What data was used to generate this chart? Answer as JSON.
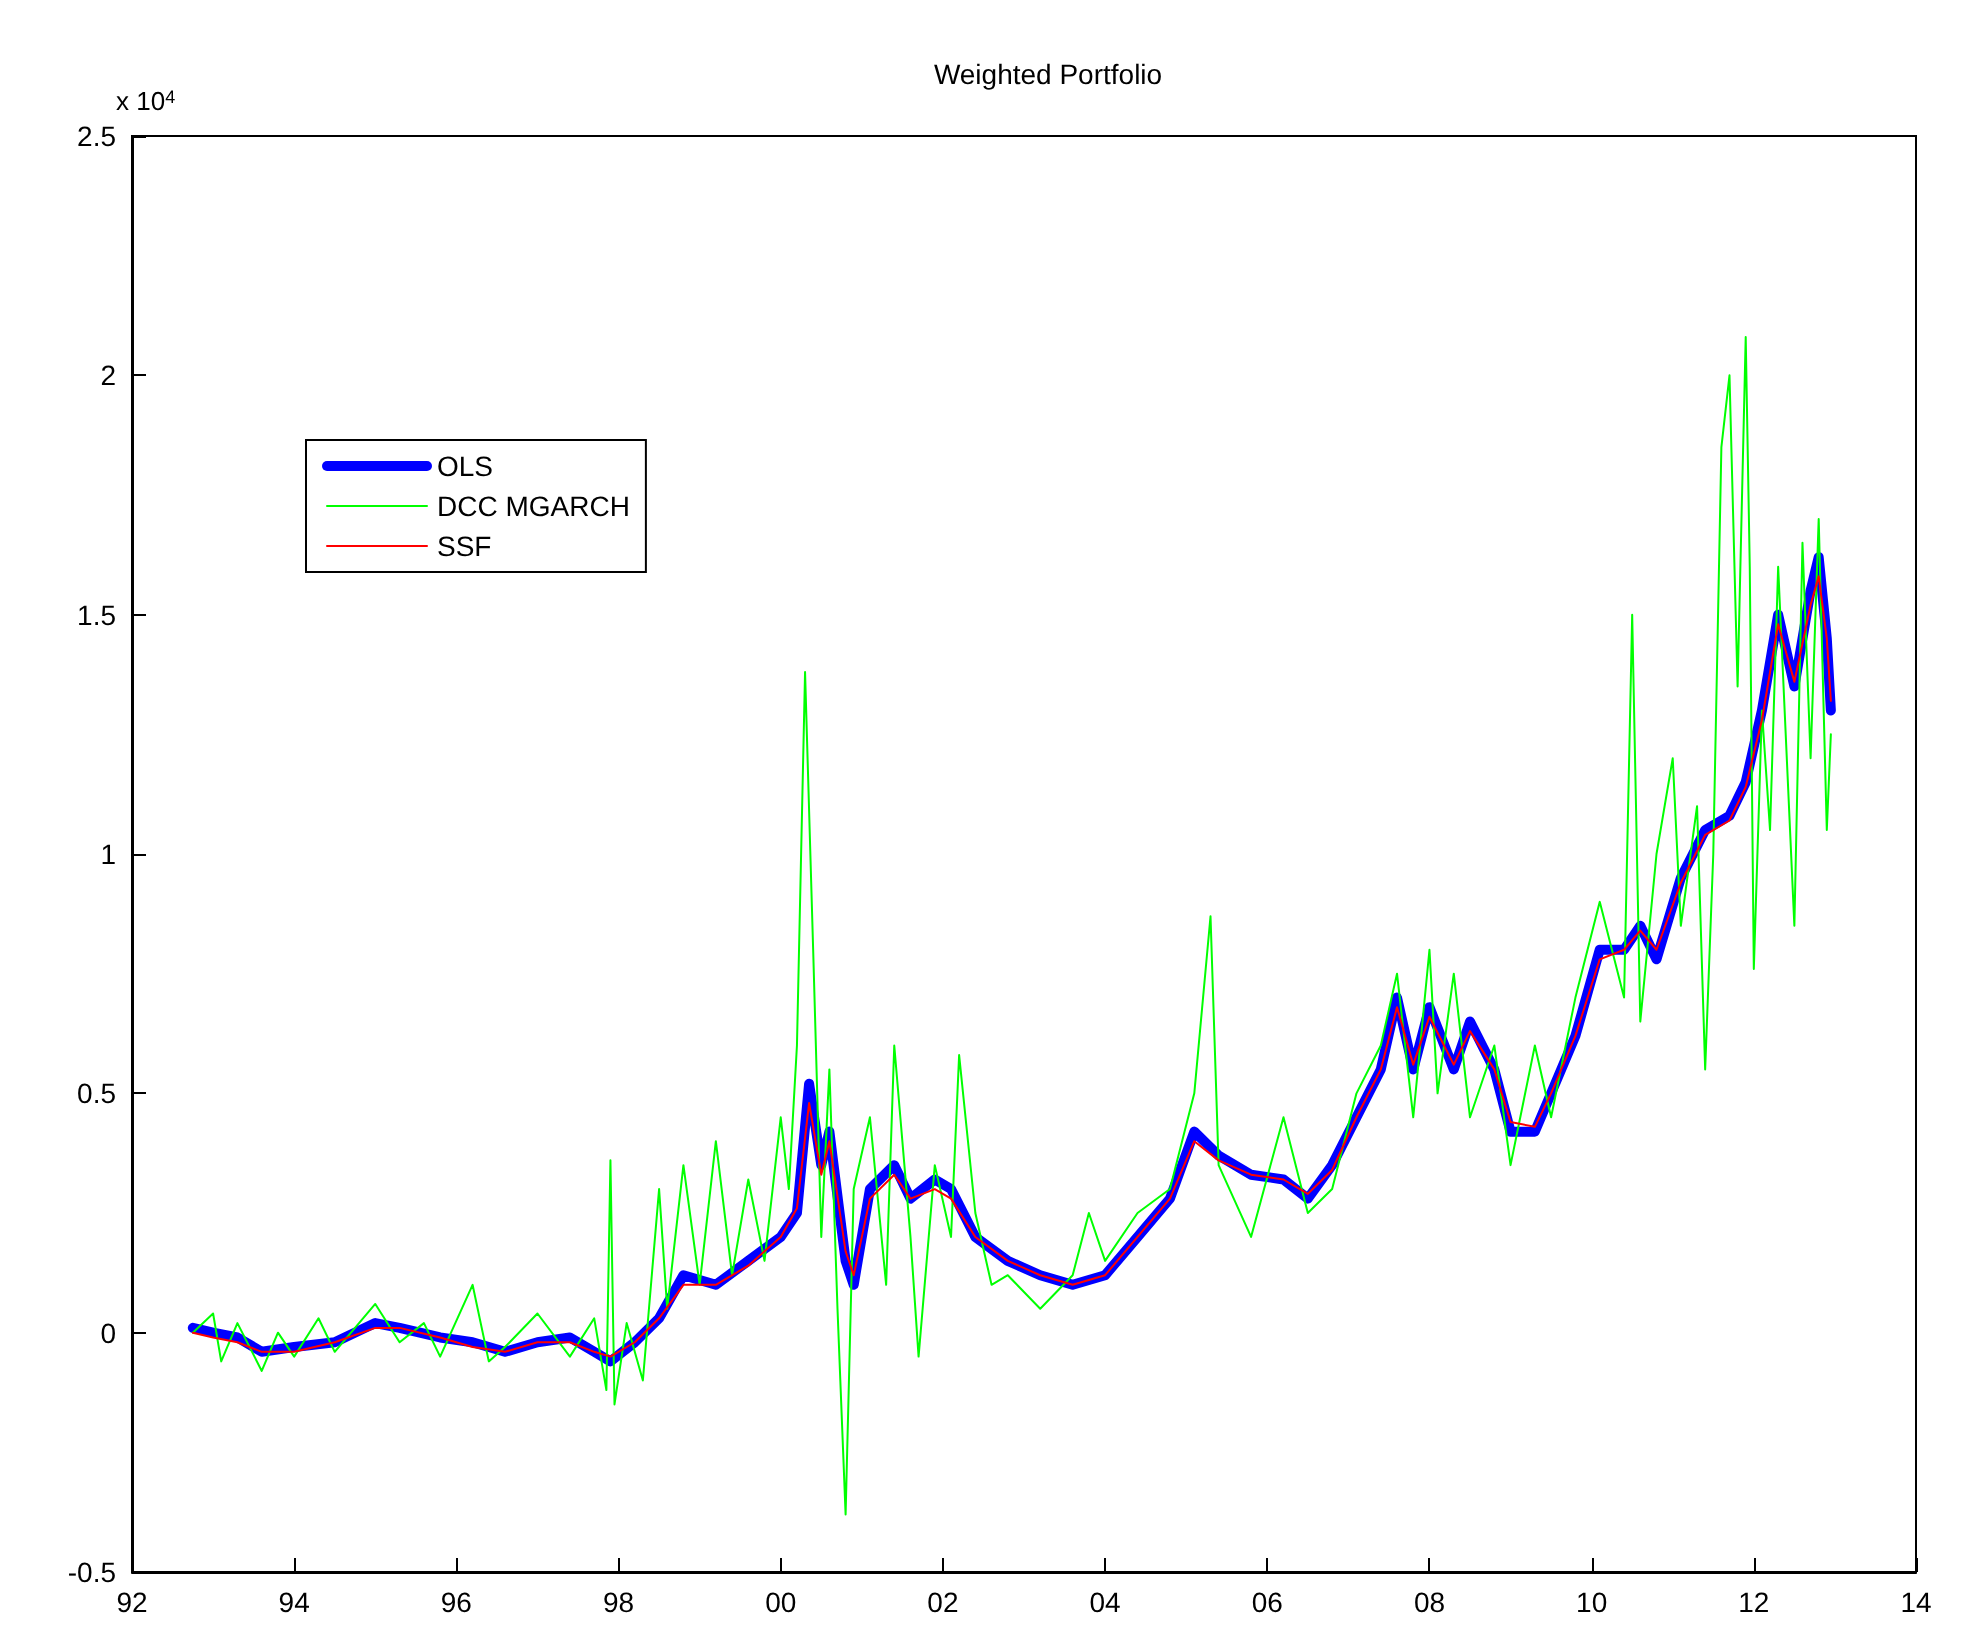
{
  "chart_data": {
    "type": "line",
    "title": "Weighted Portfolio",
    "annotations": [
      "x 10$^{4}$"
    ],
    "xlim": [
      1992,
      2014
    ],
    "xticks": [
      {
        "value": 1992,
        "label": "92"
      },
      {
        "value": 1994,
        "label": "94"
      },
      {
        "value": 1996,
        "label": "96"
      },
      {
        "value": 1998,
        "label": "98"
      },
      {
        "value": 2000,
        "label": "00"
      },
      {
        "value": 2002,
        "label": "02"
      },
      {
        "value": 2004,
        "label": "04"
      },
      {
        "value": 2006,
        "label": "06"
      },
      {
        "value": 2008,
        "label": "08"
      },
      {
        "value": 2010,
        "label": "10"
      },
      {
        "value": 2012,
        "label": "12"
      },
      {
        "value": 2014,
        "label": "14"
      }
    ],
    "ylim": [
      -0.5,
      2.5
    ],
    "yticks": [
      -0.5,
      0,
      0.5,
      1,
      1.5,
      2,
      2.5
    ],
    "grid": false,
    "legend": "top left",
    "marker": "none",
    "line_style": "solid",
    "series": [
      {
        "name": "OLS",
        "color": "#0000ff",
        "x": [
          1992.75,
          1993.0,
          1993.3,
          1993.6,
          1994.0,
          1994.5,
          1995.0,
          1995.3,
          1995.8,
          1996.2,
          1996.6,
          1997.0,
          1997.4,
          1997.7,
          1997.9,
          1998.2,
          1998.5,
          1998.8,
          1999.2,
          1999.6,
          2000.0,
          2000.2,
          2000.35,
          2000.5,
          2000.6,
          2000.8,
          2000.9,
          2001.1,
          2001.4,
          2001.6,
          2001.9,
          2002.1,
          2002.4,
          2002.8,
          2003.2,
          2003.6,
          2004.0,
          2004.4,
          2004.8,
          2005.1,
          2005.4,
          2005.8,
          2006.2,
          2006.5,
          2006.8,
          2007.1,
          2007.4,
          2007.6,
          2007.8,
          2008.0,
          2008.3,
          2008.5,
          2008.8,
          2009.0,
          2009.3,
          2009.5,
          2009.8,
          2010.1,
          2010.4,
          2010.6,
          2010.8,
          2011.1,
          2011.4,
          2011.7,
          2011.9,
          2012.1,
          2012.3,
          2012.5,
          2012.7,
          2012.8,
          2012.9,
          2012.95
        ],
        "values": [
          0.01,
          0.0,
          -0.01,
          -0.04,
          -0.03,
          -0.02,
          0.02,
          0.01,
          -0.01,
          -0.02,
          -0.04,
          -0.02,
          -0.01,
          -0.04,
          -0.06,
          -0.02,
          0.03,
          0.12,
          0.1,
          0.15,
          0.2,
          0.25,
          0.52,
          0.35,
          0.42,
          0.15,
          0.1,
          0.3,
          0.35,
          0.28,
          0.32,
          0.3,
          0.2,
          0.15,
          0.12,
          0.1,
          0.12,
          0.2,
          0.28,
          0.42,
          0.37,
          0.33,
          0.32,
          0.28,
          0.35,
          0.45,
          0.55,
          0.7,
          0.55,
          0.68,
          0.55,
          0.65,
          0.55,
          0.42,
          0.42,
          0.5,
          0.62,
          0.8,
          0.8,
          0.85,
          0.78,
          0.95,
          1.05,
          1.08,
          1.15,
          1.3,
          1.5,
          1.35,
          1.55,
          1.62,
          1.45,
          1.3
        ]
      },
      {
        "name": "DCC MGARCH",
        "color": "#00ff00",
        "x": [
          1992.75,
          1993.0,
          1993.1,
          1993.3,
          1993.6,
          1993.8,
          1994.0,
          1994.3,
          1994.5,
          1995.0,
          1995.3,
          1995.6,
          1995.8,
          1996.2,
          1996.4,
          1996.6,
          1997.0,
          1997.4,
          1997.7,
          1997.85,
          1997.9,
          1997.95,
          1998.1,
          1998.3,
          1998.5,
          1998.6,
          1998.8,
          1999.0,
          1999.2,
          1999.4,
          1999.6,
          1999.8,
          2000.0,
          2000.1,
          2000.2,
          2000.3,
          2000.4,
          2000.5,
          2000.6,
          2000.7,
          2000.8,
          2000.9,
          2001.1,
          2001.3,
          2001.4,
          2001.6,
          2001.7,
          2001.9,
          2002.1,
          2002.2,
          2002.4,
          2002.6,
          2002.8,
          2003.2,
          2003.6,
          2003.8,
          2004.0,
          2004.4,
          2004.8,
          2005.1,
          2005.3,
          2005.4,
          2005.8,
          2006.2,
          2006.5,
          2006.8,
          2007.1,
          2007.4,
          2007.6,
          2007.8,
          2008.0,
          2008.1,
          2008.3,
          2008.5,
          2008.8,
          2009.0,
          2009.3,
          2009.5,
          2009.8,
          2010.1,
          2010.4,
          2010.5,
          2010.6,
          2010.8,
          2011.0,
          2011.1,
          2011.3,
          2011.4,
          2011.5,
          2011.6,
          2011.7,
          2011.8,
          2011.9,
          2011.95,
          2012.0,
          2012.1,
          2012.2,
          2012.3,
          2012.5,
          2012.6,
          2012.7,
          2012.8,
          2012.9,
          2012.95
        ],
        "values": [
          0.0,
          0.04,
          -0.06,
          0.02,
          -0.08,
          0.0,
          -0.05,
          0.03,
          -0.04,
          0.06,
          -0.02,
          0.02,
          -0.05,
          0.1,
          -0.06,
          -0.03,
          0.04,
          -0.05,
          0.03,
          -0.12,
          0.36,
          -0.15,
          0.02,
          -0.1,
          0.3,
          0.05,
          0.35,
          0.1,
          0.4,
          0.12,
          0.32,
          0.15,
          0.45,
          0.3,
          0.6,
          1.38,
          0.8,
          0.2,
          0.55,
          0.05,
          -0.38,
          0.3,
          0.45,
          0.1,
          0.6,
          0.2,
          -0.05,
          0.35,
          0.2,
          0.58,
          0.25,
          0.1,
          0.12,
          0.05,
          0.12,
          0.25,
          0.15,
          0.25,
          0.3,
          0.5,
          0.87,
          0.35,
          0.2,
          0.45,
          0.25,
          0.3,
          0.5,
          0.6,
          0.75,
          0.45,
          0.8,
          0.5,
          0.75,
          0.45,
          0.6,
          0.35,
          0.6,
          0.45,
          0.7,
          0.9,
          0.7,
          1.5,
          0.65,
          1.0,
          1.2,
          0.85,
          1.1,
          0.55,
          1.0,
          1.85,
          2.0,
          1.35,
          2.08,
          1.6,
          0.76,
          1.3,
          1.05,
          1.6,
          0.85,
          1.65,
          1.2,
          1.7,
          1.05,
          1.25
        ]
      },
      {
        "name": "SSF",
        "color": "#ff0000",
        "x": [
          1992.75,
          1993.0,
          1993.3,
          1993.6,
          1994.0,
          1994.5,
          1995.0,
          1995.3,
          1995.8,
          1996.2,
          1996.6,
          1997.0,
          1997.4,
          1997.7,
          1997.9,
          1998.2,
          1998.5,
          1998.8,
          1999.2,
          1999.6,
          2000.0,
          2000.2,
          2000.35,
          2000.5,
          2000.6,
          2000.8,
          2000.9,
          2001.1,
          2001.4,
          2001.6,
          2001.9,
          2002.1,
          2002.4,
          2002.8,
          2003.2,
          2003.6,
          2004.0,
          2004.4,
          2004.8,
          2005.1,
          2005.4,
          2005.8,
          2006.2,
          2006.5,
          2006.8,
          2007.1,
          2007.4,
          2007.6,
          2007.8,
          2008.0,
          2008.3,
          2008.5,
          2008.8,
          2009.0,
          2009.3,
          2009.5,
          2009.8,
          2010.1,
          2010.4,
          2010.6,
          2010.8,
          2011.1,
          2011.4,
          2011.7,
          2011.9,
          2012.1,
          2012.3,
          2012.5,
          2012.7,
          2012.8,
          2012.9,
          2012.95
        ],
        "values": [
          0.0,
          -0.01,
          -0.02,
          -0.04,
          -0.04,
          -0.02,
          0.01,
          0.01,
          -0.01,
          -0.03,
          -0.04,
          -0.02,
          -0.02,
          -0.04,
          -0.05,
          -0.02,
          0.03,
          0.1,
          0.1,
          0.14,
          0.2,
          0.26,
          0.48,
          0.33,
          0.4,
          0.17,
          0.12,
          0.28,
          0.33,
          0.28,
          0.3,
          0.28,
          0.2,
          0.15,
          0.12,
          0.1,
          0.12,
          0.2,
          0.28,
          0.4,
          0.36,
          0.33,
          0.32,
          0.29,
          0.34,
          0.45,
          0.55,
          0.68,
          0.56,
          0.66,
          0.56,
          0.63,
          0.55,
          0.44,
          0.43,
          0.5,
          0.62,
          0.78,
          0.8,
          0.84,
          0.8,
          0.94,
          1.04,
          1.07,
          1.14,
          1.28,
          1.48,
          1.36,
          1.52,
          1.58,
          1.45,
          1.32
        ]
      }
    ]
  }
}
